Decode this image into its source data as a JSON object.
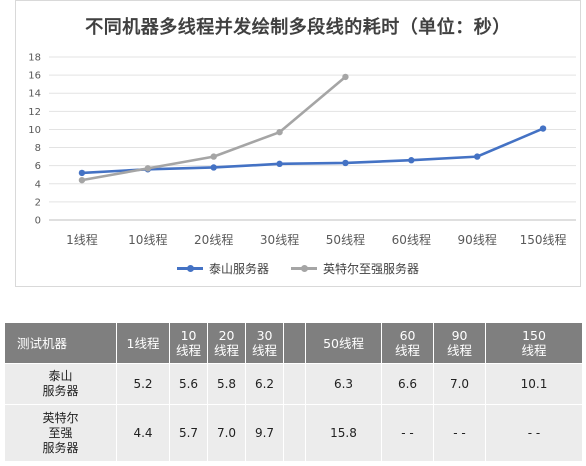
{
  "chart_data": {
    "type": "line",
    "title": "不同机器多线程并发绘制多段线的耗时（单位：秒）",
    "categories": [
      "1线程",
      "10线程",
      "20线程",
      "30线程",
      "50线程",
      "60线程",
      "90线程",
      "150线程"
    ],
    "series": [
      {
        "name": "泰山服务器",
        "color": "#4472c4",
        "values": [
          5.2,
          5.6,
          5.8,
          6.2,
          6.3,
          6.6,
          7.0,
          10.1
        ]
      },
      {
        "name": "英特尔至强服务器",
        "color": "#a5a5a5",
        "values": [
          4.4,
          5.7,
          7.0,
          9.7,
          15.8,
          null,
          null,
          null
        ]
      }
    ],
    "y_ticks": [
      "0",
      "2",
      "4",
      "6",
      "8",
      "10",
      "12",
      "14",
      "16",
      "18"
    ],
    "ylim": [
      0,
      18
    ],
    "grid": true,
    "legend_position": "bottom"
  },
  "table": {
    "header": {
      "label": "测试机器",
      "cols": [
        {
          "l1": "1线程",
          "l2": ""
        },
        {
          "l1": "10",
          "l2": "线程"
        },
        {
          "l1": "20",
          "l2": "线程"
        },
        {
          "l1": "30",
          "l2": "线程"
        },
        {
          "l1": "",
          "l2": ""
        },
        {
          "l1": "50线程",
          "l2": ""
        },
        {
          "l1": "60",
          "l2": "线程"
        },
        {
          "l1": "90",
          "l2": "线程"
        },
        {
          "l1": "150",
          "l2": "线程"
        }
      ]
    },
    "rows": [
      {
        "label": [
          "泰山",
          "服务器"
        ],
        "cells": [
          "5.2",
          "5.6",
          "5.8",
          "6.2",
          "",
          "6.3",
          "6.6",
          "7.0",
          "10.1"
        ]
      },
      {
        "label": [
          "英特尔",
          "至强",
          "服务器"
        ],
        "cells": [
          "4.4",
          "5.7",
          "7.0",
          "9.7",
          "",
          "15.8",
          "- -",
          "- -",
          "- -"
        ]
      }
    ]
  }
}
